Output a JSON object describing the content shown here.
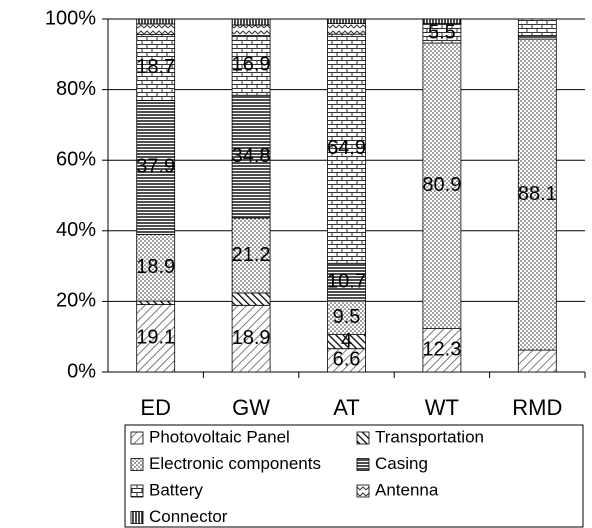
{
  "chart_data": {
    "type": "stacked_bar",
    "categories": [
      "ED",
      "GW",
      "AT",
      "WT",
      "RMD"
    ],
    "ylim": [
      0,
      100
    ],
    "yticks": [
      {
        "value": 0,
        "label": "0%"
      },
      {
        "value": 20,
        "label": "20%"
      },
      {
        "value": 40,
        "label": "40%"
      },
      {
        "value": 60,
        "label": "60%"
      },
      {
        "value": 80,
        "label": "80%"
      },
      {
        "value": 100,
        "label": "100%"
      }
    ],
    "grid": true,
    "legend": "bottom",
    "series": [
      {
        "name": "Photovoltaic Panel",
        "pattern": "diagonal",
        "values": [
          19.1,
          18.9,
          6.6,
          12.3,
          6.2
        ],
        "value_labels": [
          "19.1",
          "18.9",
          "6.6",
          "12.3",
          null
        ]
      },
      {
        "name": "Transportation",
        "pattern": "back-diagonal",
        "values": [
          1,
          3.5,
          4,
          0,
          0
        ],
        "value_labels": [
          null,
          null,
          "4",
          null,
          null
        ]
      },
      {
        "name": "Electronic components",
        "pattern": "dots",
        "values": [
          18.9,
          21.2,
          9.5,
          80.9,
          88.1
        ],
        "value_labels": [
          "18.9",
          "21.2",
          "9.5",
          "80.9",
          "88.1"
        ]
      },
      {
        "name": "Casing",
        "pattern": "hlines",
        "values": [
          37.9,
          34.8,
          10.7,
          0,
          1
        ],
        "value_labels": [
          "37.9",
          "34.8",
          "10.7",
          null,
          null
        ]
      },
      {
        "name": "Battery",
        "pattern": "brick",
        "values": [
          18.7,
          16.9,
          64.9,
          5.5,
          4.7
        ],
        "value_labels": [
          "18.7",
          "16.9",
          "64.9",
          "5.5",
          null
        ]
      },
      {
        "name": "Antenna",
        "pattern": "zigzag",
        "values": [
          3,
          3,
          3,
          0,
          0
        ],
        "value_labels": [
          null,
          null,
          null,
          null,
          null
        ]
      },
      {
        "name": "Connector",
        "pattern": "vlines",
        "values": [
          1.4,
          1.7,
          1.3,
          1.3,
          0
        ],
        "value_labels": [
          null,
          null,
          null,
          null,
          null
        ]
      }
    ]
  }
}
